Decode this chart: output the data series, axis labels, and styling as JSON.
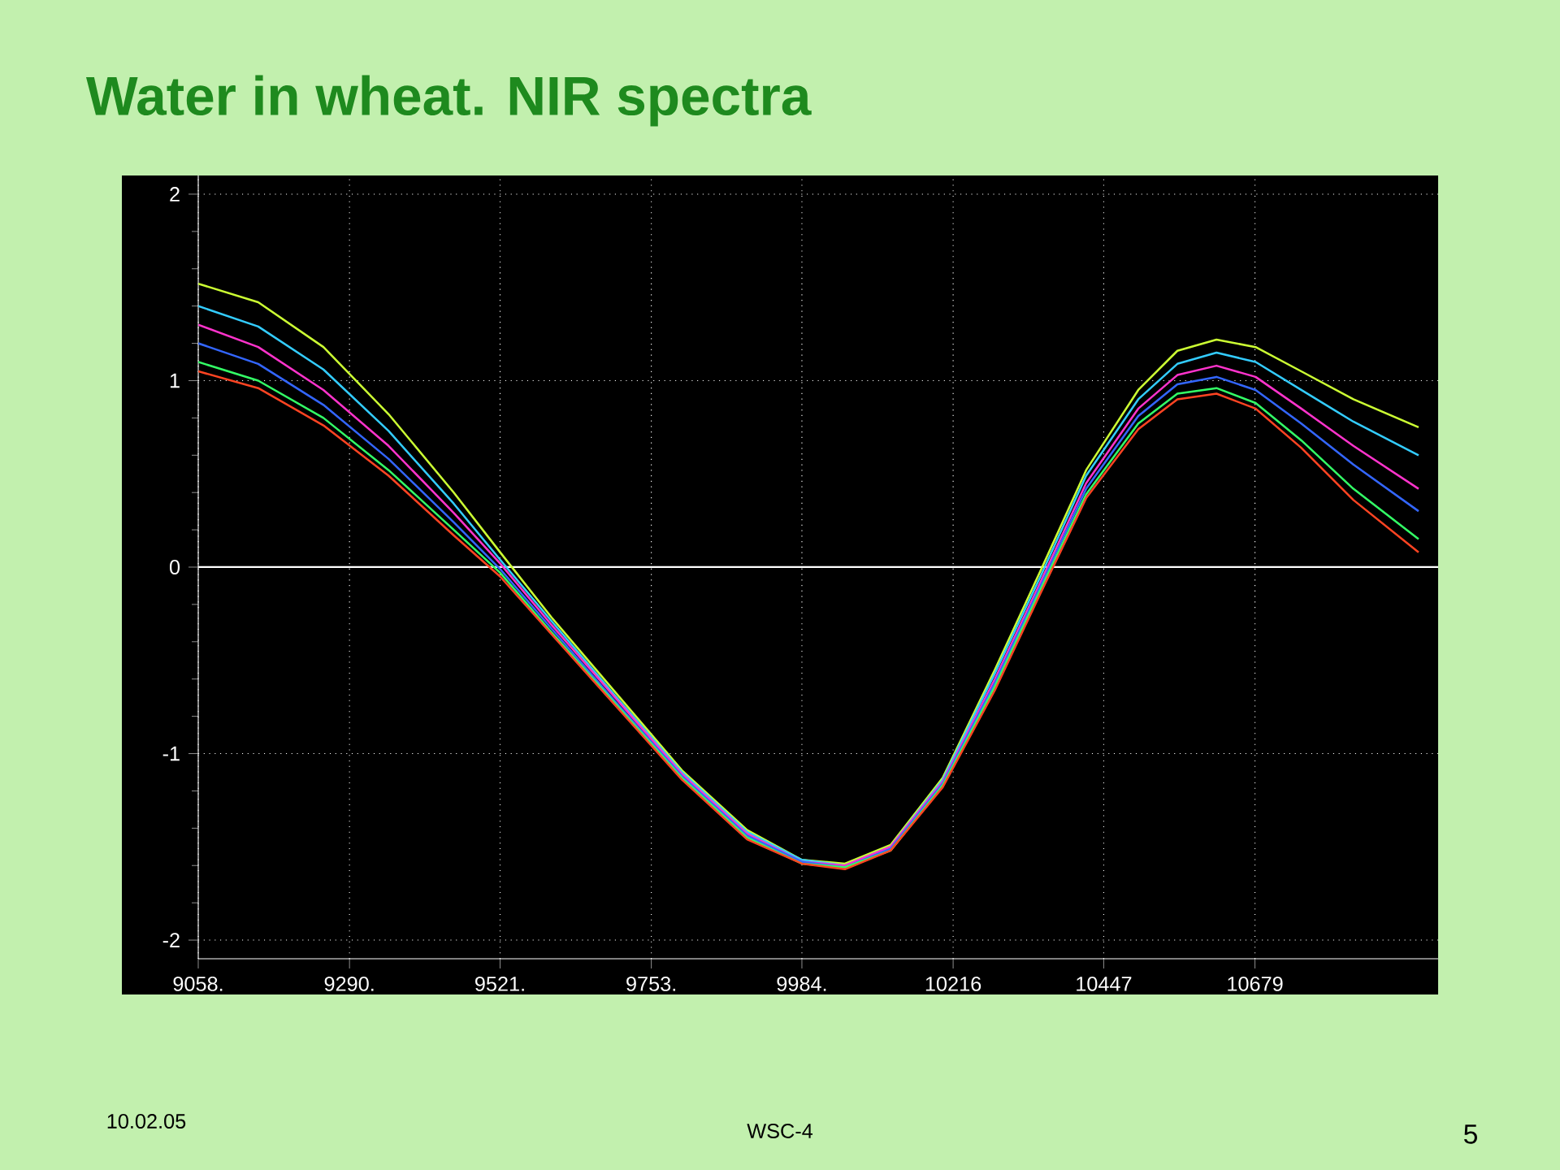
{
  "chart_data": {
    "type": "line",
    "title": "Water in wheat. NIR spectra",
    "x": [
      9058,
      9150,
      9250,
      9350,
      9450,
      9521,
      9600,
      9700,
      9800,
      9900,
      9984,
      10050,
      10120,
      10200,
      10280,
      10350,
      10420,
      10500,
      10560,
      10620,
      10680,
      10750,
      10830,
      10930
    ],
    "series": [
      {
        "color": "#ccff33",
        "values": [
          1.52,
          1.42,
          1.18,
          0.82,
          0.4,
          0.08,
          -0.27,
          -0.68,
          -1.09,
          -1.41,
          -1.57,
          -1.59,
          -1.49,
          -1.13,
          -0.55,
          -0.02,
          0.52,
          0.95,
          1.16,
          1.22,
          1.18,
          1.05,
          0.9,
          0.75
        ]
      },
      {
        "color": "#33ccff",
        "values": [
          1.4,
          1.29,
          1.06,
          0.73,
          0.34,
          0.04,
          -0.29,
          -0.7,
          -1.1,
          -1.42,
          -1.57,
          -1.6,
          -1.5,
          -1.14,
          -0.57,
          -0.05,
          0.49,
          0.9,
          1.09,
          1.15,
          1.1,
          0.95,
          0.78,
          0.6
        ]
      },
      {
        "color": "#ff33cc",
        "values": [
          1.3,
          1.18,
          0.95,
          0.65,
          0.29,
          0.02,
          -0.31,
          -0.71,
          -1.11,
          -1.43,
          -1.58,
          -1.6,
          -1.5,
          -1.15,
          -0.6,
          -0.08,
          0.45,
          0.85,
          1.03,
          1.08,
          1.02,
          0.85,
          0.65,
          0.42
        ]
      },
      {
        "color": "#3366ff",
        "values": [
          1.2,
          1.09,
          0.87,
          0.58,
          0.24,
          -0.01,
          -0.33,
          -0.73,
          -1.12,
          -1.44,
          -1.58,
          -1.61,
          -1.51,
          -1.16,
          -0.62,
          -0.1,
          0.42,
          0.81,
          0.98,
          1.02,
          0.95,
          0.77,
          0.55,
          0.3
        ]
      },
      {
        "color": "#33ff66",
        "values": [
          1.1,
          1.0,
          0.8,
          0.52,
          0.2,
          -0.03,
          -0.35,
          -0.74,
          -1.13,
          -1.45,
          -1.59,
          -1.61,
          -1.52,
          -1.17,
          -0.64,
          -0.12,
          0.39,
          0.77,
          0.93,
          0.96,
          0.88,
          0.68,
          0.42,
          0.15
        ]
      },
      {
        "color": "#ff4422",
        "values": [
          1.05,
          0.96,
          0.76,
          0.49,
          0.17,
          -0.05,
          -0.36,
          -0.75,
          -1.14,
          -1.46,
          -1.59,
          -1.62,
          -1.52,
          -1.18,
          -0.66,
          -0.14,
          0.37,
          0.74,
          0.9,
          0.93,
          0.85,
          0.64,
          0.36,
          0.08
        ]
      }
    ],
    "xlim": [
      9058,
      10960
    ],
    "ylim": [
      -2.1,
      2.1
    ],
    "xticks": [
      {
        "value": 9058,
        "label": "9058."
      },
      {
        "value": 9290,
        "label": "9290."
      },
      {
        "value": 9521,
        "label": "9521."
      },
      {
        "value": 9753,
        "label": "9753."
      },
      {
        "value": 9984,
        "label": "9984."
      },
      {
        "value": 10216,
        "label": "10216"
      },
      {
        "value": 10447,
        "label": "10447"
      },
      {
        "value": 10679,
        "label": "10679"
      }
    ],
    "yticks": [
      -2,
      -1,
      0,
      1,
      2
    ],
    "grid": true,
    "marker": "none",
    "line_style": "solid",
    "ref_lines": [
      {
        "axis": "y",
        "value": 0,
        "color": "#ffffff"
      }
    ],
    "annotations": [
      "10.02.05",
      "WSC-4",
      "5"
    ]
  }
}
